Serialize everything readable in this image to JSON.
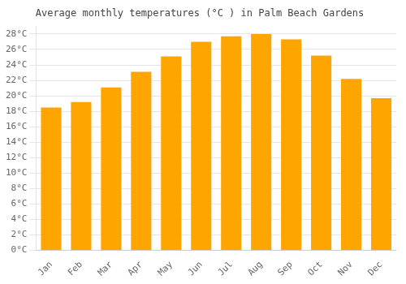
{
  "chart_data": {
    "type": "bar",
    "title": "Average monthly temperatures (°C ) in Palm Beach Gardens",
    "categories": [
      "Jan",
      "Feb",
      "Mar",
      "Apr",
      "May",
      "Jun",
      "Jul",
      "Aug",
      "Sep",
      "Oct",
      "Nov",
      "Dec"
    ],
    "values": [
      18.5,
      19.2,
      21.1,
      23.1,
      25.1,
      27.0,
      27.7,
      28.0,
      27.3,
      25.2,
      22.2,
      19.7
    ],
    "color": "#FFA500",
    "ylim": [
      0,
      29
    ],
    "yticks": [
      {
        "value": 0,
        "label": "0°C"
      },
      {
        "value": 2,
        "label": "2°C"
      },
      {
        "value": 4,
        "label": "4°C"
      },
      {
        "value": 6,
        "label": "6°C"
      },
      {
        "value": 8,
        "label": "8°C"
      },
      {
        "value": 10,
        "label": "10°C"
      },
      {
        "value": 12,
        "label": "12°C"
      },
      {
        "value": 14,
        "label": "14°C"
      },
      {
        "value": 16,
        "label": "16°C"
      },
      {
        "value": 18,
        "label": "18°C"
      },
      {
        "value": 20,
        "label": "20°C"
      },
      {
        "value": 22,
        "label": "22°C"
      },
      {
        "value": 24,
        "label": "24°C"
      },
      {
        "value": 26,
        "label": "26°C"
      },
      {
        "value": 28,
        "label": "28°C"
      }
    ],
    "grid": true
  }
}
